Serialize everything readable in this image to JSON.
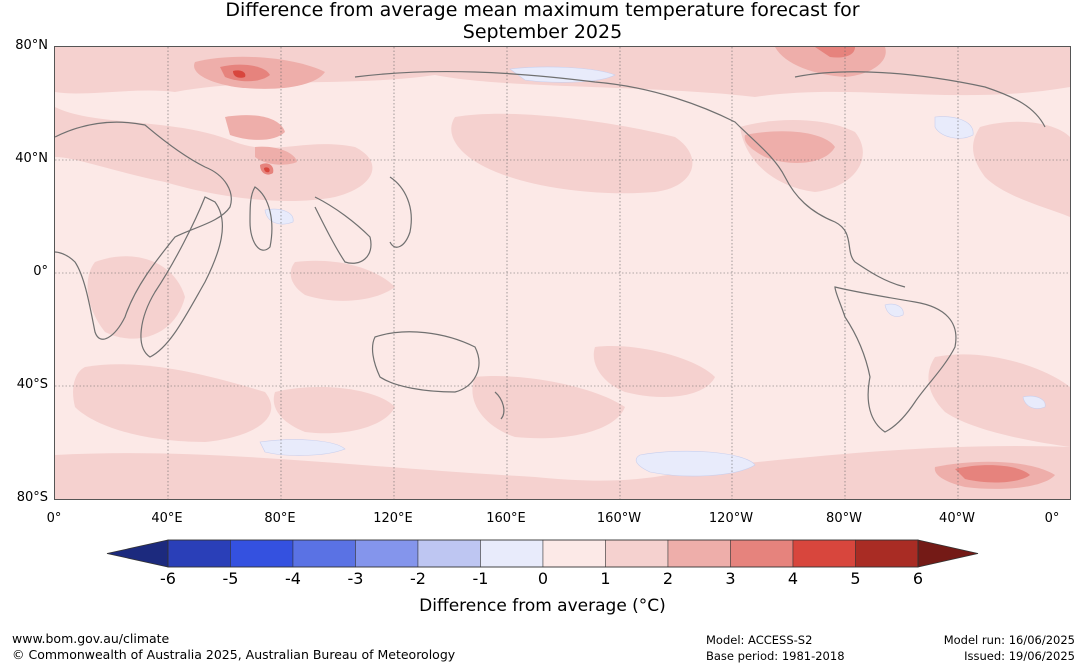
{
  "title": {
    "line1": "Difference from average mean maximum temperature forecast for",
    "line2": "September 2025"
  },
  "map": {
    "lat_labels": [
      "80°N",
      "40°N",
      "0°",
      "40°S",
      "80°S"
    ],
    "lon_labels": [
      "0°",
      "40°E",
      "80°E",
      "120°E",
      "160°E",
      "160°W",
      "120°W",
      "80°W",
      "40°W",
      "0°"
    ],
    "background_color": "#fce9e7"
  },
  "colorbar": {
    "title": "Difference from average (°C)",
    "ticks": [
      "-6",
      "-5",
      "-4",
      "-3",
      "-2",
      "-1",
      "0",
      "1",
      "2",
      "3",
      "4",
      "5",
      "6"
    ],
    "colors": [
      "#1c2a7e",
      "#2a3fb8",
      "#3451e0",
      "#5a72e4",
      "#8495ec",
      "#bec6f2",
      "#e8ebfb",
      "#fce9e7",
      "#f5d1cf",
      "#eeaeaa",
      "#e6837d",
      "#d8463d",
      "#a92c24",
      "#741a16"
    ]
  },
  "footer": {
    "url": "www.bom.gov.au/climate",
    "copyright": "© Commonwealth of Australia 2025, Australian Bureau of Meteorology",
    "model": "Model: ACCESS-S2",
    "base_period": "Base period: 1981-2018",
    "model_run": "Model run: 16/06/2025",
    "issued": "Issued: 19/06/2025"
  }
}
